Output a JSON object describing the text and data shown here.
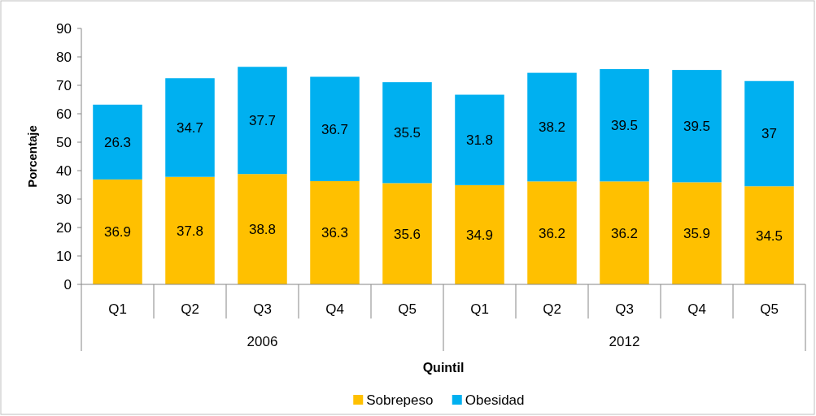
{
  "chart_data": {
    "type": "bar",
    "stacked": true,
    "xlabel": "Quintil",
    "ylabel": "Porcentaje",
    "categories": [
      "Q1",
      "Q2",
      "Q3",
      "Q4",
      "Q5",
      "Q1",
      "Q2",
      "Q3",
      "Q4",
      "Q5"
    ],
    "series": [
      {
        "name": "Sobrepeso",
        "color": "#ffc000",
        "values": [
          36.9,
          37.8,
          38.8,
          36.3,
          35.6,
          34.9,
          36.2,
          36.2,
          35.9,
          34.5
        ]
      },
      {
        "name": "Obesidad",
        "color": "#00b0f0",
        "values": [
          26.3,
          34.7,
          37.7,
          36.7,
          35.5,
          31.8,
          38.2,
          39.5,
          39.5,
          37
        ]
      }
    ],
    "annotations": [
      "2006",
      "2012"
    ],
    "ylim": [
      0,
      90
    ],
    "yticks": [
      0,
      10,
      20,
      30,
      40,
      50,
      60,
      70,
      80,
      90
    ],
    "data_labels": true,
    "legend": "bottom",
    "grid": false
  }
}
